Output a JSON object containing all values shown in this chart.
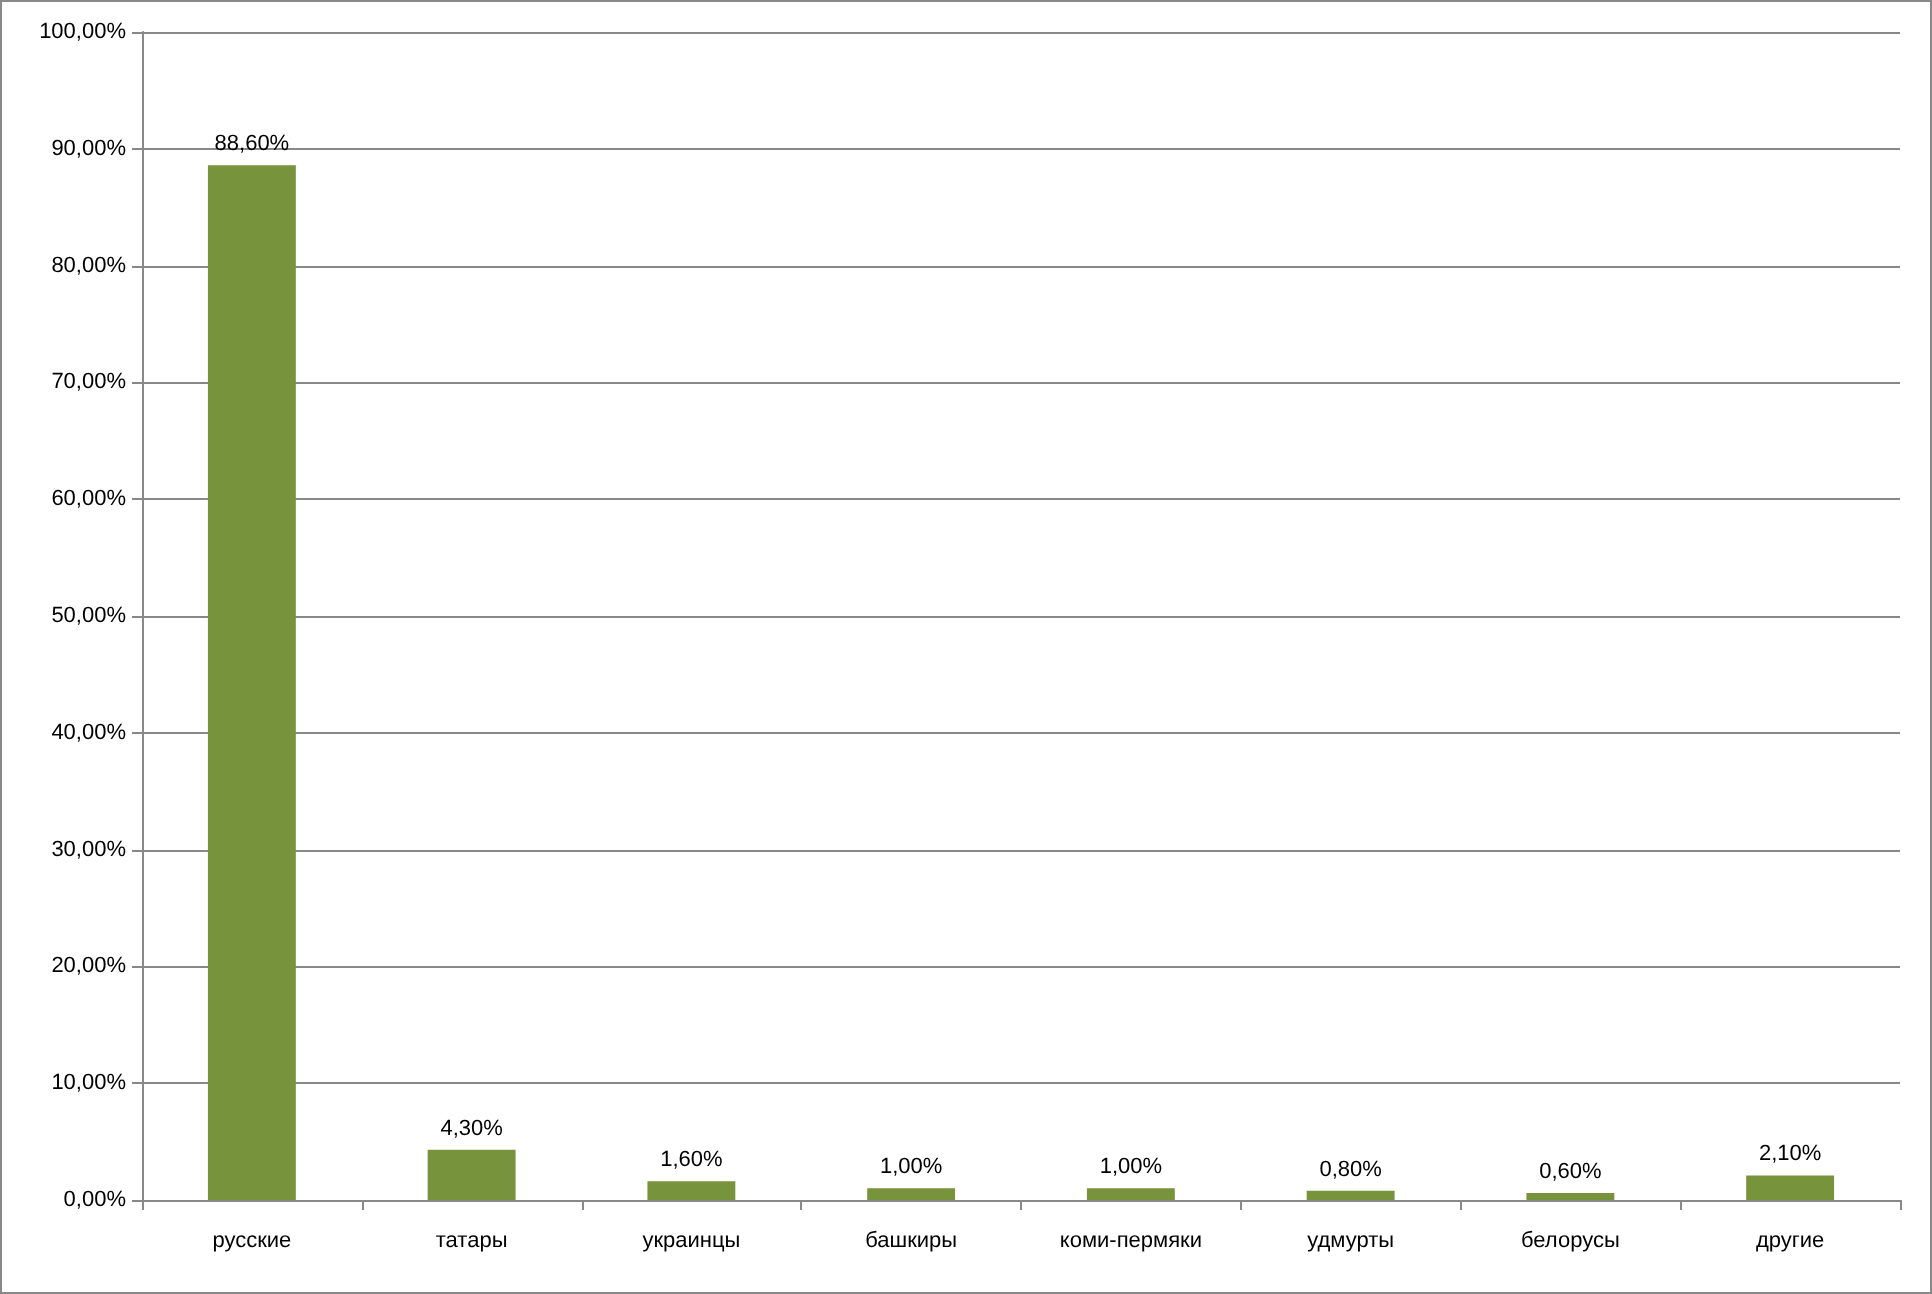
{
  "chart_data": {
    "type": "bar",
    "categories": [
      "русские",
      "татары",
      "украинцы",
      "башкиры",
      "коми-пермяки",
      "удмурты",
      "белорусы",
      "другие"
    ],
    "values": [
      88.6,
      4.3,
      1.6,
      1.0,
      1.0,
      0.8,
      0.6,
      2.1
    ],
    "value_labels": [
      "88,60%",
      "4,30%",
      "1,60%",
      "1,00%",
      "1,00%",
      "0,80%",
      "0,60%",
      "2,10%"
    ],
    "color": "#77933c",
    "ylim": [
      0,
      100
    ],
    "yticks": [
      {
        "value": 0,
        "label": "0,00%"
      },
      {
        "value": 10,
        "label": "10,00%"
      },
      {
        "value": 20,
        "label": "20,00%"
      },
      {
        "value": 30,
        "label": "30,00%"
      },
      {
        "value": 40,
        "label": "40,00%"
      },
      {
        "value": 50,
        "label": "50,00%"
      },
      {
        "value": 60,
        "label": "60,00%"
      },
      {
        "value": 70,
        "label": "70,00%"
      },
      {
        "value": 80,
        "label": "80,00%"
      },
      {
        "value": 90,
        "label": "90,00%"
      },
      {
        "value": 100,
        "label": "100,00%"
      }
    ],
    "grid": "y"
  }
}
